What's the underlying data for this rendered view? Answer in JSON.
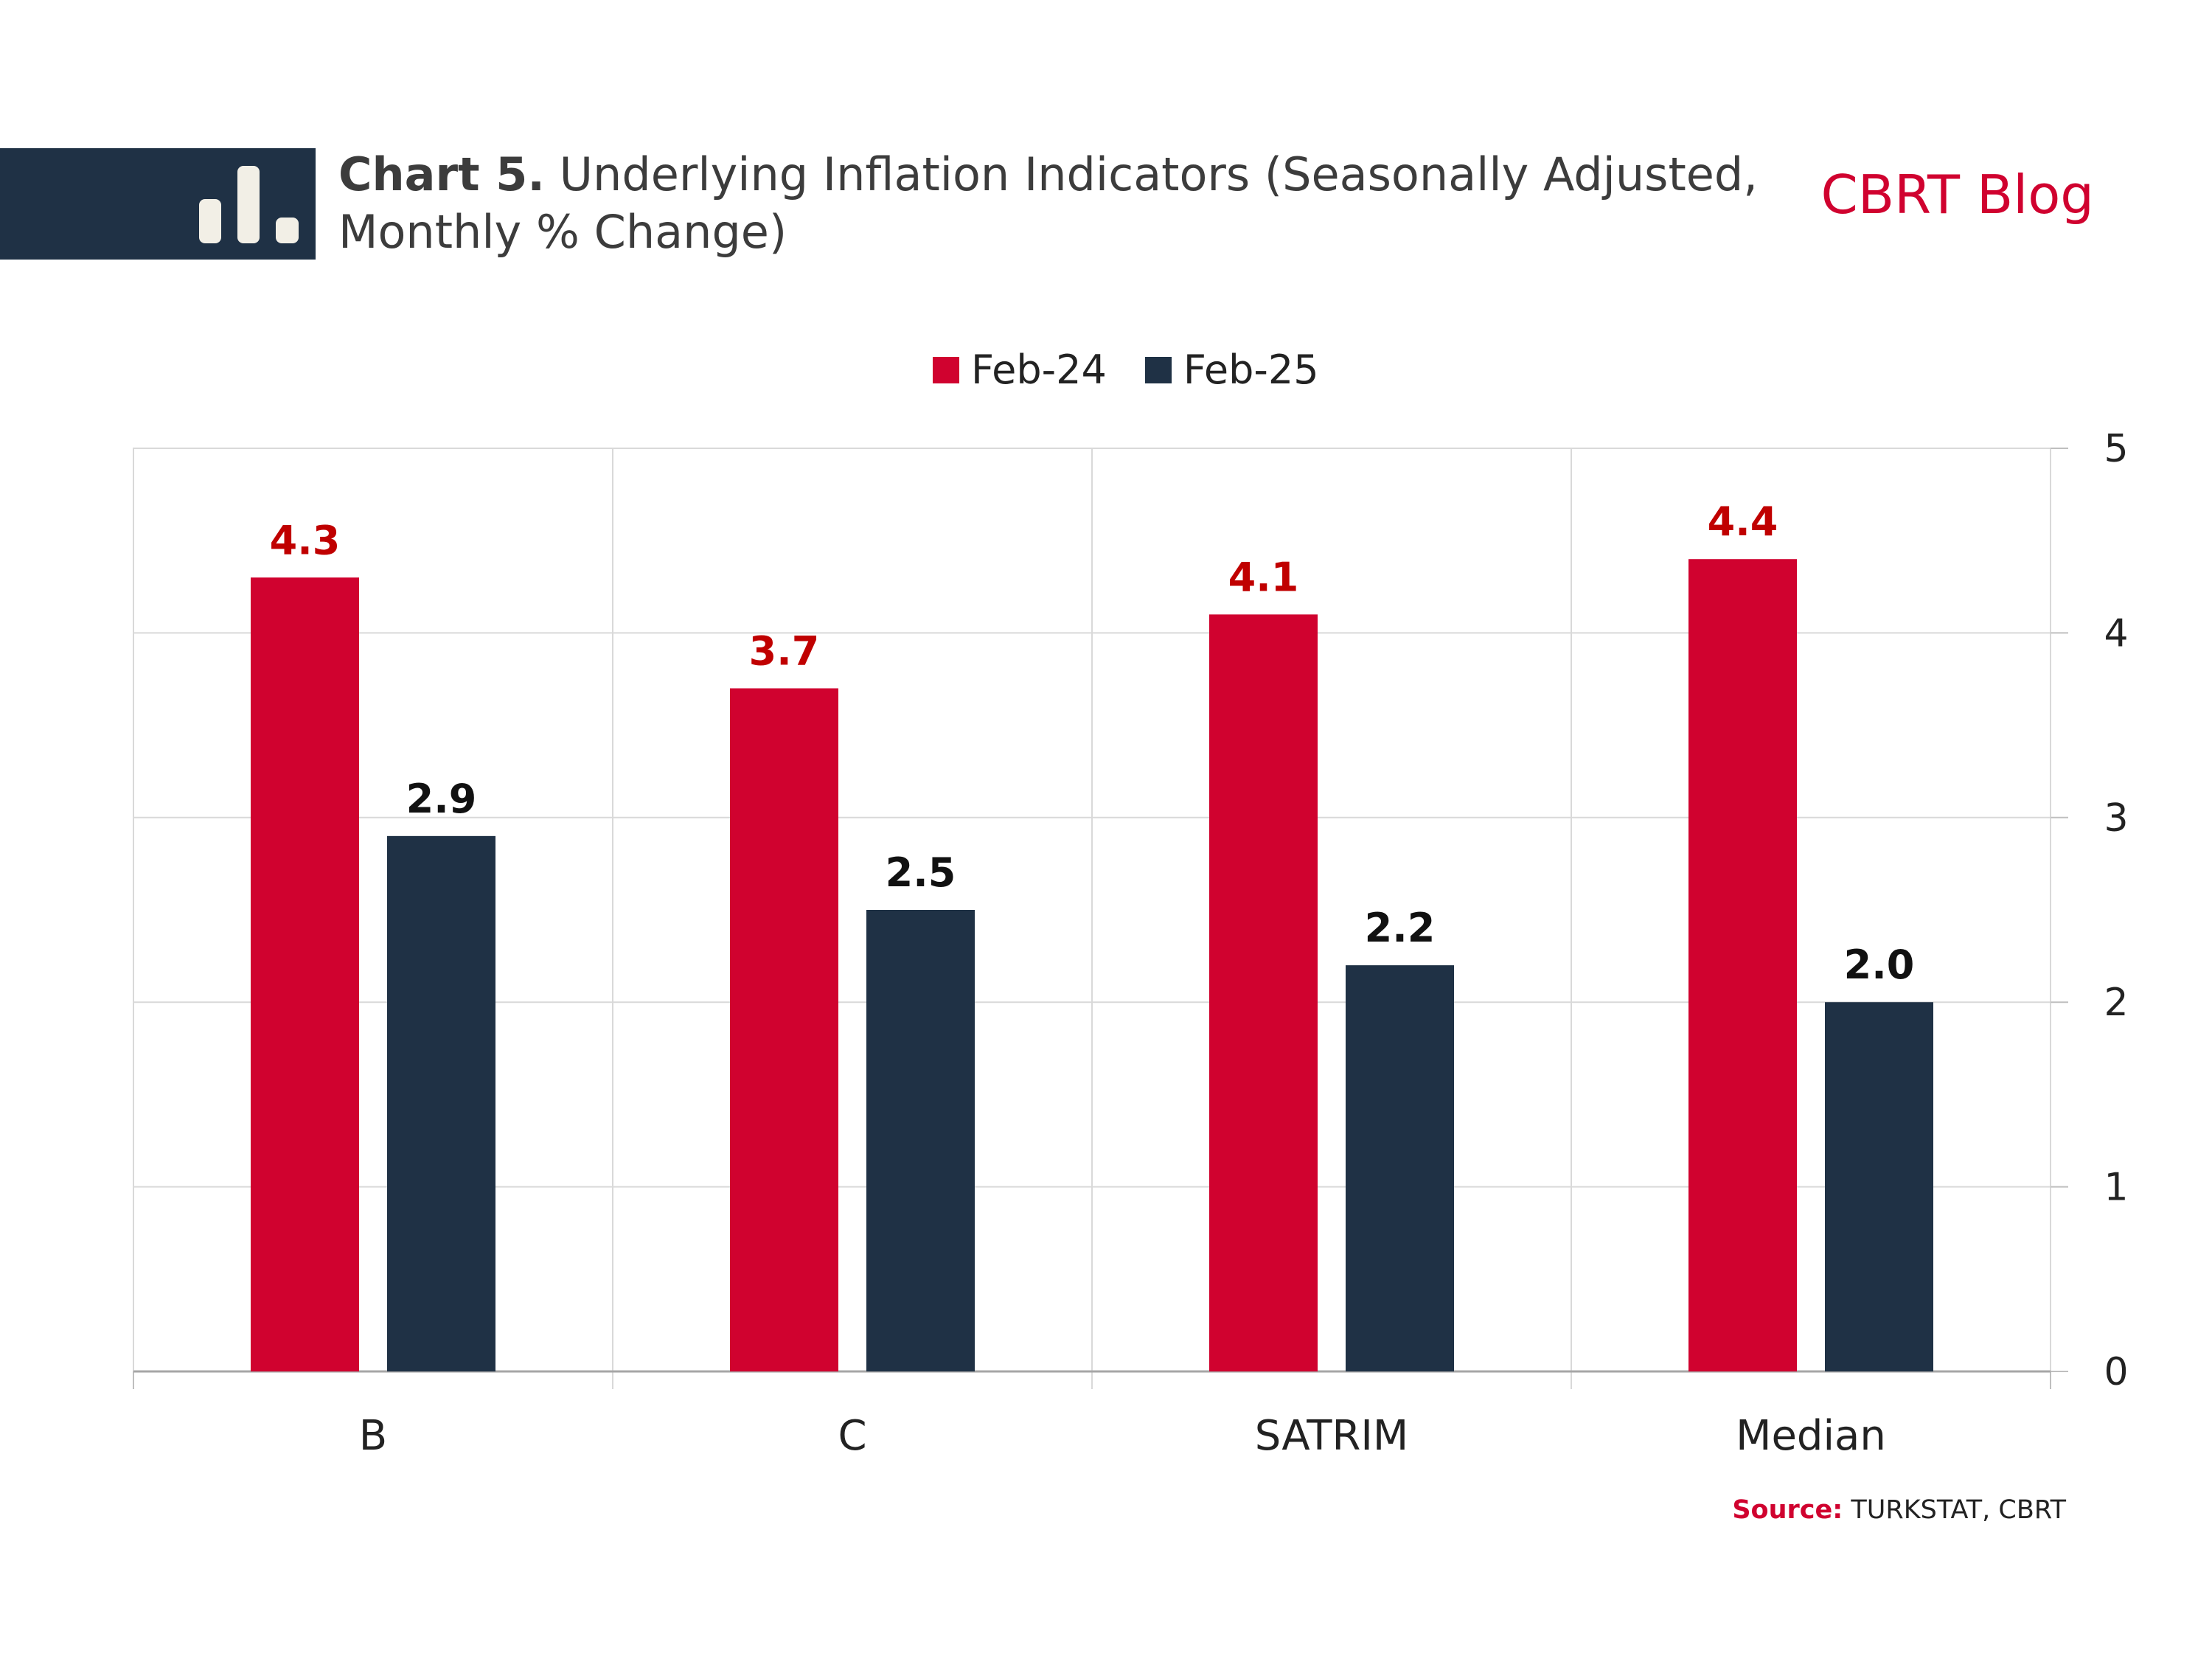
{
  "header": {
    "title_bold": "Chart 5.",
    "title_rest": " Underlying Inflation Indicators (Seasonally Adjusted, Monthly % Change)",
    "brand": "CBRT Blog",
    "icon": "bar-chart-icon"
  },
  "source": {
    "label": "Source:",
    "text": " TURKSTAT, CBRT"
  },
  "colors": {
    "feb24": "#d0022f",
    "feb25": "#1f3145",
    "header_bg": "#1f3145",
    "grid": "#d9d9d9"
  },
  "chart_data": {
    "type": "bar",
    "categories": [
      "B",
      "C",
      "SATRIM",
      "Median"
    ],
    "series": [
      {
        "name": "Feb-24",
        "values": [
          4.3,
          3.7,
          4.1,
          4.4
        ],
        "labels": [
          "4.3",
          "3.7",
          "4.1",
          "4.4"
        ]
      },
      {
        "name": "Feb-25",
        "values": [
          2.9,
          2.5,
          2.2,
          2.0
        ],
        "labels": [
          "2.9",
          "2.5",
          "2.2",
          "2.0"
        ]
      }
    ],
    "ylim": [
      0,
      5
    ],
    "yticks": [
      "0",
      "1",
      "2",
      "3",
      "4",
      "5"
    ],
    "y_axis_side": "right",
    "grid": true,
    "legend_position": "top-center",
    "data_labels": true
  }
}
